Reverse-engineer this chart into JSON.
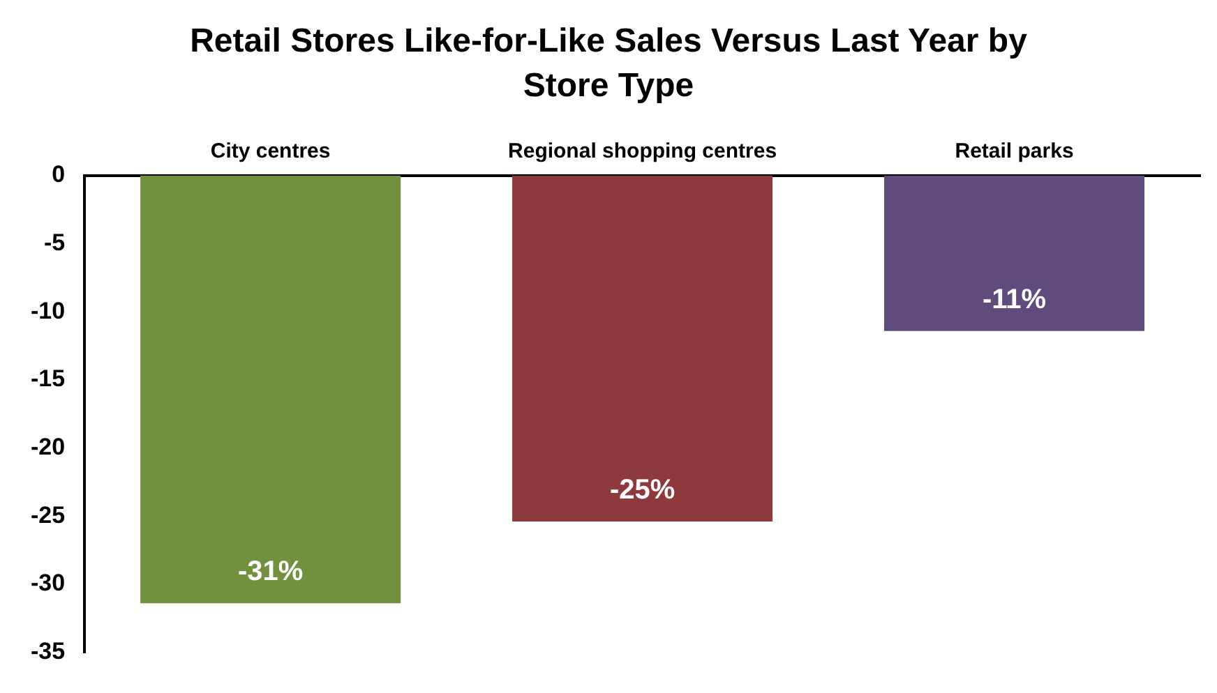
{
  "chart_data": {
    "type": "bar",
    "title": "Retail Stores Like-for-Like Sales Versus Last Year by Store Type",
    "categories": [
      "City centres",
      "Regional shopping centres",
      "Retail parks"
    ],
    "values": [
      -31.4,
      -25.4,
      -11.4
    ],
    "colors": [
      "#71913f",
      "#8e393c",
      "#604c7c"
    ],
    "value_labels": [
      "-31%",
      "-25%",
      "-11%"
    ],
    "ylim": [
      -35,
      0
    ],
    "yticks": [
      0,
      -5,
      -10,
      -15,
      -20,
      -25,
      -30,
      -35
    ],
    "grid": false,
    "legend": false
  }
}
